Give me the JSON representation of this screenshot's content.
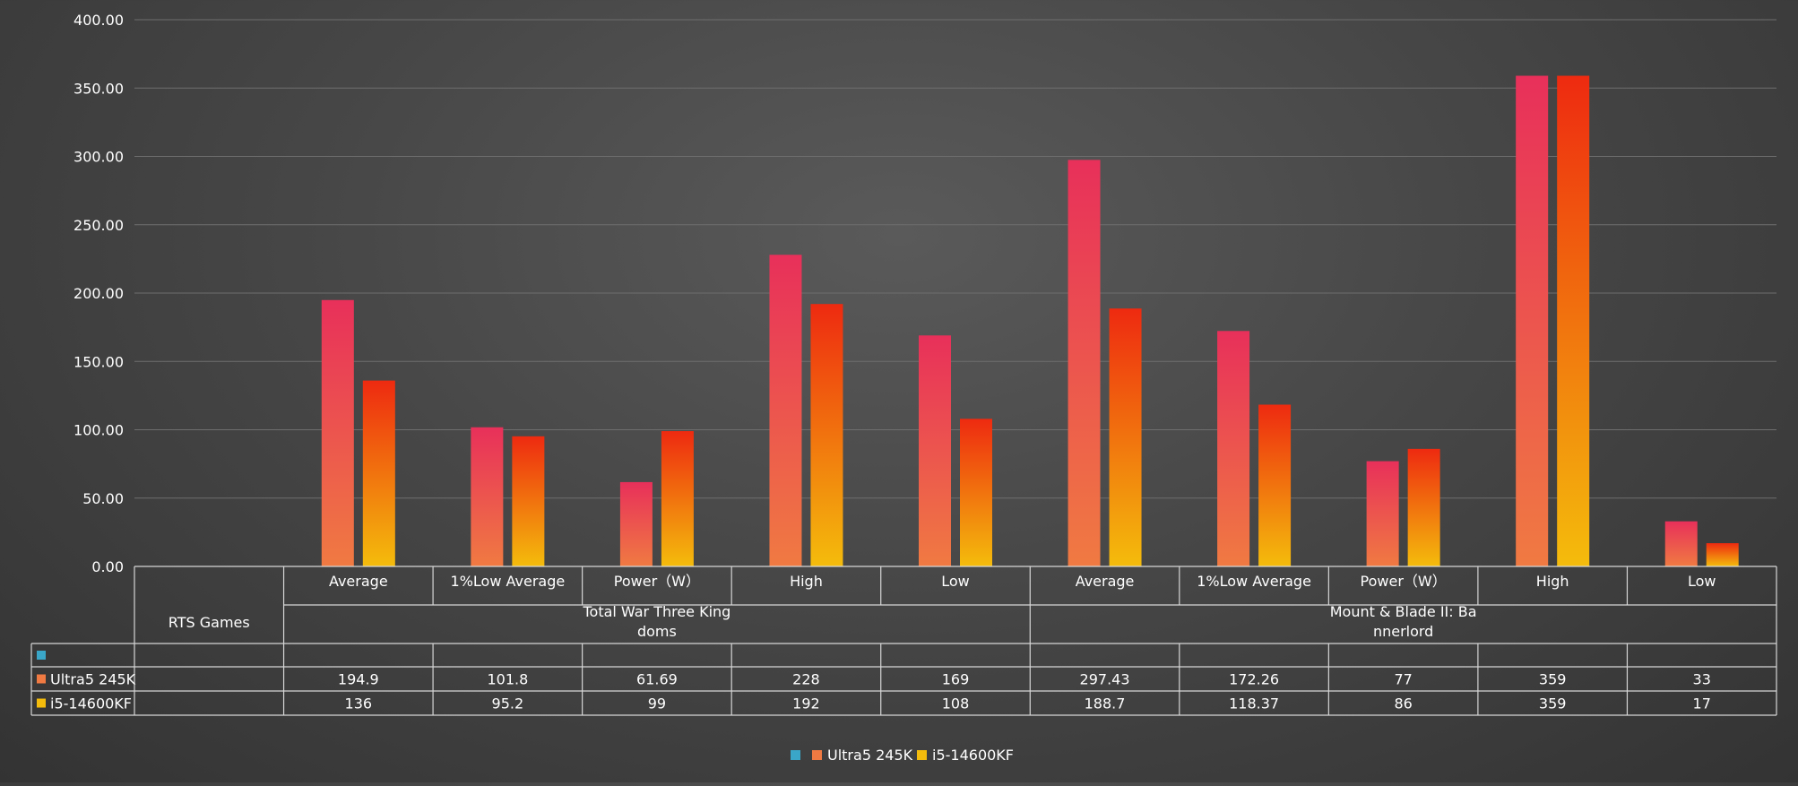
{
  "colors": {
    "background_center": "#5a5a5a",
    "background_edge": "#333333",
    "grid": "#6e6e6e",
    "table_border": "#d6d6d6",
    "ultra5_top": "#e8305a",
    "ultra5_bottom": "#f07a42",
    "i5_top": "#ee2a10",
    "i5_bottom": "#f4bc0c",
    "blank_series": "#3aa6c8"
  },
  "chart_data": {
    "type": "bar",
    "ylim": [
      0,
      400
    ],
    "yticks": [
      "0.00",
      "50.00",
      "100.00",
      "150.00",
      "200.00",
      "250.00",
      "300.00",
      "350.00",
      "400.00"
    ],
    "grid": true,
    "legend_position": "bottom",
    "category_header": "RTS Games",
    "groups": [
      {
        "label": [
          "Total War Three King",
          "doms"
        ],
        "span": [
          1,
          5
        ]
      },
      {
        "label": [
          "Mount & Blade II: Ba",
          "nnerlord"
        ],
        "span": [
          6,
          10
        ]
      }
    ],
    "categories": [
      "",
      "Average",
      "1%Low Average",
      "Power（W）",
      "High",
      "Low",
      "Average",
      "1%Low Average",
      "Power（W）",
      "High",
      "Low"
    ],
    "series": [
      {
        "name": "",
        "values": [
          null,
          null,
          null,
          null,
          null,
          null,
          null,
          null,
          null,
          null,
          null
        ]
      },
      {
        "name": "Ultra5 245K",
        "values": [
          null,
          194.9,
          101.8,
          61.69,
          228,
          169,
          297.43,
          172.26,
          77,
          359,
          33
        ]
      },
      {
        "name": "i5-14600KF",
        "values": [
          null,
          136,
          95.2,
          99,
          192,
          108,
          188.7,
          118.37,
          86,
          359,
          17
        ]
      }
    ],
    "table_values": [
      [
        "",
        "",
        "",
        "",
        "",
        "",
        "",
        "",
        "",
        "",
        ""
      ],
      [
        "",
        "194.9",
        "101.8",
        "61.69",
        "228",
        "169",
        "297.43",
        "172.26",
        "77",
        "359",
        "33"
      ],
      [
        "",
        "136",
        "95.2",
        "99",
        "192",
        "108",
        "188.7",
        "118.37",
        "86",
        "359",
        "17"
      ]
    ],
    "legend": [
      "",
      "Ultra5 245K",
      "i5-14600KF"
    ]
  }
}
